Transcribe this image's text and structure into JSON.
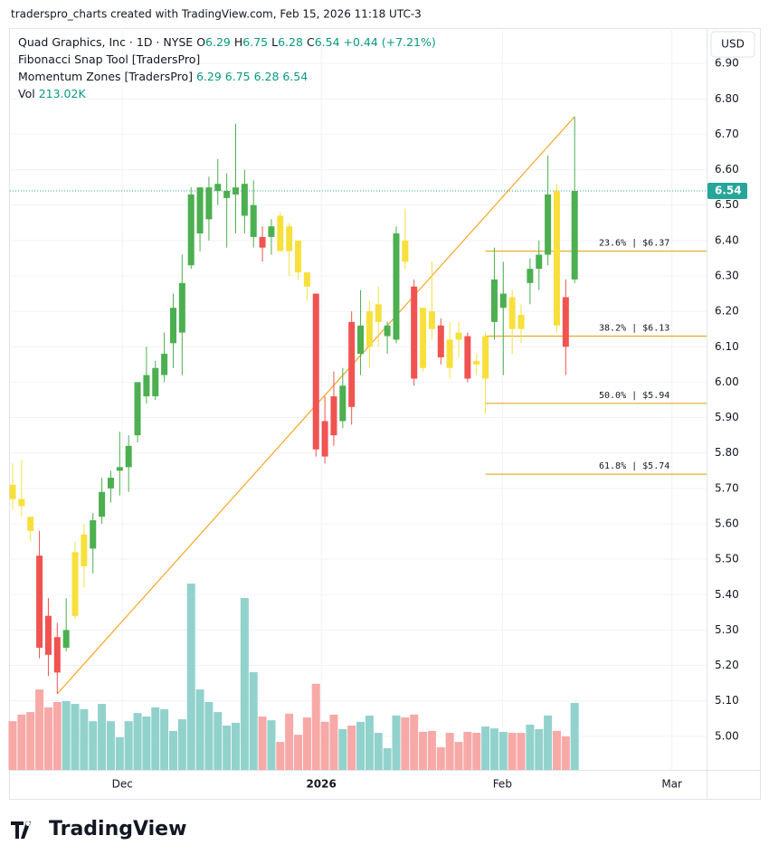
{
  "chart_data": {
    "type": "candlestick",
    "caption": "traderspro_charts created with TradingView.com, Feb 15, 2026 11:18 UTC-3",
    "symbol": "Quad Graphics, Inc · 1D · NYSE",
    "ohlc_legend": [
      {
        "key": "O",
        "value": "6.29"
      },
      {
        "key": "H",
        "value": "6.75"
      },
      {
        "key": "L",
        "value": "6.28"
      },
      {
        "key": "C",
        "value": "6.54"
      }
    ],
    "change": "+0.44 (+7.21%)",
    "indicators": [
      {
        "name": "Fibonacci Snap Tool [TradersPro]",
        "values": ""
      },
      {
        "name": "Momentum Zones [TradersPro]",
        "values": "6.29  6.75  6.28  6.54"
      }
    ],
    "volume_label": "Vol",
    "volume_value": "213.02K",
    "currency": "USD",
    "brand": "TradingView",
    "open": [
      5.71,
      5.67,
      5.62,
      5.51,
      5.34,
      5.28,
      5.25,
      5.34,
      5.48,
      5.53,
      5.62,
      5.7,
      5.75,
      5.76,
      5.85,
      5.96,
      5.96,
      6.02,
      6.11,
      6.14,
      6.33,
      6.42,
      6.46,
      6.54,
      6.52,
      6.53,
      6.47,
      6.41,
      6.41,
      6.41,
      6.47,
      6.44,
      6.4,
      6.31,
      6.25,
      5.89,
      5.96,
      5.89,
      6.17,
      6.08,
      6.1,
      6.17,
      6.13,
      6.12,
      6.4,
      6.27,
      6.21,
      6.2,
      6.16,
      6.12,
      6.14,
      6.13,
      6.06,
      6.01,
      6.17,
      6.21,
      6.24,
      6.19,
      6.28,
      6.32,
      6.36,
      6.54,
      6.24,
      6.29
    ],
    "high": [
      5.77,
      5.78,
      5.62,
      5.58,
      5.39,
      5.32,
      5.39,
      5.55,
      5.6,
      5.63,
      5.73,
      5.75,
      5.86,
      5.85,
      6.0,
      6.1,
      6.06,
      6.14,
      6.25,
      6.36,
      6.55,
      6.55,
      6.58,
      6.63,
      6.59,
      6.73,
      6.6,
      6.57,
      6.44,
      6.46,
      6.48,
      6.45,
      6.4,
      6.31,
      6.25,
      5.96,
      6.03,
      6.04,
      6.2,
      6.26,
      6.23,
      6.27,
      6.17,
      6.44,
      6.49,
      6.29,
      6.21,
      6.34,
      6.18,
      6.17,
      6.17,
      6.14,
      6.08,
      6.14,
      6.38,
      6.34,
      6.26,
      6.22,
      6.35,
      6.4,
      6.64,
      6.56,
      6.29,
      6.75
    ],
    "low": [
      5.64,
      5.62,
      5.55,
      5.22,
      5.17,
      5.12,
      5.24,
      5.33,
      5.42,
      5.46,
      5.6,
      5.66,
      5.68,
      5.69,
      5.83,
      5.94,
      5.95,
      6.0,
      6.04,
      6.02,
      6.32,
      6.37,
      6.4,
      6.5,
      6.38,
      6.42,
      6.42,
      6.38,
      6.34,
      6.36,
      6.37,
      6.3,
      6.29,
      6.23,
      5.79,
      5.77,
      5.82,
      5.87,
      5.88,
      6.02,
      6.04,
      6.1,
      6.08,
      6.11,
      6.32,
      5.99,
      6.03,
      6.12,
      6.05,
      6.01,
      6.07,
      6.0,
      6.02,
      5.91,
      6.12,
      6.02,
      6.08,
      6.11,
      6.22,
      6.26,
      6.33,
      6.14,
      6.02,
      6.28
    ],
    "close": [
      5.67,
      5.65,
      5.58,
      5.25,
      5.23,
      5.18,
      5.3,
      5.52,
      5.57,
      5.61,
      5.69,
      5.73,
      5.76,
      5.82,
      6.0,
      6.02,
      6.04,
      6.08,
      6.21,
      6.28,
      6.53,
      6.55,
      6.55,
      6.56,
      6.54,
      6.55,
      6.56,
      6.5,
      6.38,
      6.44,
      6.37,
      6.37,
      6.31,
      6.27,
      5.81,
      5.79,
      5.85,
      5.99,
      5.93,
      6.16,
      6.2,
      6.22,
      6.16,
      6.42,
      6.34,
      6.01,
      6.04,
      6.15,
      6.07,
      6.04,
      6.12,
      6.01,
      6.05,
      6.13,
      6.29,
      6.25,
      6.15,
      6.15,
      6.32,
      6.36,
      6.53,
      6.16,
      6.1,
      6.54
    ],
    "volume": [
      155,
      176,
      184,
      256,
      199,
      216,
      219,
      210,
      193,
      155,
      210,
      155,
      104,
      155,
      181,
      170,
      199,
      193,
      124,
      161,
      593,
      256,
      216,
      184,
      141,
      150,
      547,
      311,
      170,
      158,
      89,
      179,
      112,
      167,
      274,
      153,
      176,
      130,
      141,
      153,
      173,
      118,
      69,
      173,
      167,
      176,
      121,
      124,
      72,
      118,
      89,
      121,
      118,
      138,
      132,
      121,
      118,
      118,
      144,
      130,
      173,
      124,
      107,
      213.02
    ],
    "colors": [
      "#f7e03c",
      "#f7e03c",
      "#f7e03c",
      "#f05350",
      "#f05350",
      "#f05350",
      "#4caf50",
      "#f7e03c",
      "#f7e03c",
      "#4caf50",
      "#4caf50",
      "#4caf50",
      "#4caf50",
      "#4caf50",
      "#4caf50",
      "#4caf50",
      "#4caf50",
      "#4caf50",
      "#4caf50",
      "#4caf50",
      "#4caf50",
      "#4caf50",
      "#4caf50",
      "#4caf50",
      "#4caf50",
      "#4caf50",
      "#4caf50",
      "#4caf50",
      "#f05350",
      "#4caf50",
      "#f7e03c",
      "#f7e03c",
      "#f7e03c",
      "#f7e03c",
      "#f05350",
      "#f05350",
      "#f05350",
      "#4caf50",
      "#f05350",
      "#4caf50",
      "#f7e03c",
      "#f7e03c",
      "#4caf50",
      "#4caf50",
      "#f7e03c",
      "#f05350",
      "#f7e03c",
      "#f7e03c",
      "#f05350",
      "#f7e03c",
      "#f7e03c",
      "#f05350",
      "#f7e03c",
      "#f7e03c",
      "#4caf50",
      "#4caf50",
      "#f7e03c",
      "#f7e03c",
      "#4caf50",
      "#4caf50",
      "#4caf50",
      "#f7e03c",
      "#f05350",
      "#4caf50"
    ],
    "volume_up_color": "#92d2cc",
    "volume_down_color": "#f7a9a7",
    "ylim": [
      4.905,
      7.0
    ],
    "yticks": [
      {
        "value": 5.0,
        "label": "5.00"
      },
      {
        "value": 5.1,
        "label": "5.10"
      },
      {
        "value": 5.2,
        "label": "5.20"
      },
      {
        "value": 5.3,
        "label": "5.30"
      },
      {
        "value": 5.4,
        "label": "5.40"
      },
      {
        "value": 5.5,
        "label": "5.50"
      },
      {
        "value": 5.6,
        "label": "5.60"
      },
      {
        "value": 5.7,
        "label": "5.70"
      },
      {
        "value": 5.8,
        "label": "5.80"
      },
      {
        "value": 5.9,
        "label": "5.90"
      },
      {
        "value": 6.0,
        "label": "6.00"
      },
      {
        "value": 6.1,
        "label": "6.10"
      },
      {
        "value": 6.2,
        "label": "6.20"
      },
      {
        "value": 6.3,
        "label": "6.30"
      },
      {
        "value": 6.4,
        "label": "6.40"
      },
      {
        "value": 6.5,
        "label": "6.50"
      },
      {
        "value": 6.6,
        "label": "6.60"
      },
      {
        "value": 6.7,
        "label": "6.70"
      },
      {
        "value": 6.8,
        "label": "6.80"
      },
      {
        "value": 6.9,
        "label": "6.90"
      }
    ],
    "xticks": [
      {
        "value": 12.3,
        "label": "Dec"
      },
      {
        "value": 34.6,
        "label": "2026"
      },
      {
        "value": 54.9,
        "label": "Feb"
      },
      {
        "value": 73.9,
        "label": "Mar"
      }
    ],
    "last_price": 6.54,
    "last_price_color": "#26a69a",
    "trendline": {
      "x": [
        5,
        63
      ],
      "y": [
        5.12,
        6.75
      ],
      "color": "#f5a623"
    },
    "fib_start": 53,
    "fib_levels": [
      {
        "value": 6.37,
        "label": "23.6% | $6.37"
      },
      {
        "value": 6.13,
        "label": "38.2% | $6.13"
      },
      {
        "value": 5.94,
        "label": "50.0% | $5.94"
      },
      {
        "value": 5.74,
        "label": "61.8% | $5.74"
      }
    ],
    "fib_color": "#e0a000",
    "grid": true
  }
}
